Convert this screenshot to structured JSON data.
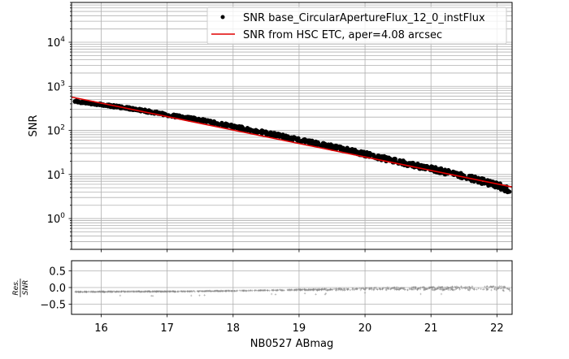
{
  "chart_data": [
    {
      "type": "scatter",
      "panel": "main",
      "title": "",
      "xlabel": "",
      "ylabel": "SNR",
      "yscale": "log",
      "xlim": [
        15.55,
        22.23
      ],
      "ylim": [
        0.2,
        80000
      ],
      "grid": true,
      "legend_position": "upper right",
      "x_ticks": [
        16,
        17,
        18,
        19,
        20,
        21,
        22
      ],
      "y_ticks": [
        "10^0",
        "10^1",
        "10^2",
        "10^3",
        "10^4"
      ],
      "y_tick_labels": [
        "10",
        "10",
        "10",
        "10",
        "10"
      ],
      "y_tick_exps": [
        "0",
        "1",
        "2",
        "3",
        "4"
      ],
      "series": [
        {
          "name": "SNR base_CircularApertureFlux_12_0_instFlux",
          "style": "black dots",
          "color": "#000000",
          "x": [
            15.6,
            16.0,
            16.5,
            17.0,
            17.5,
            18.0,
            18.5,
            19.0,
            19.5,
            20.0,
            20.5,
            21.0,
            21.5,
            22.0,
            22.2
          ],
          "y": [
            460,
            390,
            310,
            230,
            175,
            125,
            90,
            62,
            44,
            30,
            20,
            14,
            9.5,
            6,
            4.5
          ]
        },
        {
          "name": "SNR from HSC ETC, aper=4.08 arcsec",
          "style": "red line",
          "color": "#e00000",
          "x": [
            15.55,
            22.23
          ],
          "y": [
            570,
            5.2
          ]
        }
      ]
    },
    {
      "type": "scatter",
      "panel": "residual",
      "xlabel": "NB0527 ABmag",
      "ylabel": "Res./SNR",
      "ylabel_num": "Res.",
      "ylabel_den": "SNR",
      "xlim": [
        15.55,
        22.23
      ],
      "ylim": [
        -0.8,
        0.8
      ],
      "grid": true,
      "x_ticks": [
        16,
        17,
        18,
        19,
        20,
        21,
        22
      ],
      "y_ticks": [
        0.5,
        0.0,
        -0.5
      ],
      "y_tick_labels": [
        "0.5",
        "0.0",
        "−0.5"
      ],
      "series": [
        {
          "name": "residual",
          "style": "grey plus markers",
          "color": "#888888",
          "x": [
            15.6,
            16.5,
            17.0,
            18.0,
            19.0,
            19.5,
            20.0,
            20.5,
            21.0,
            21.5,
            22.0,
            22.2
          ],
          "y": [
            -0.13,
            -0.12,
            -0.12,
            -0.1,
            -0.07,
            -0.06,
            -0.04,
            -0.03,
            -0.03,
            -0.02,
            -0.02,
            -0.05
          ]
        }
      ]
    }
  ],
  "labels": {
    "x_ticks": [
      "16",
      "17",
      "18",
      "19",
      "20",
      "21",
      "22"
    ],
    "legend_dots": "SNR base_CircularApertureFlux_12_0_instFlux",
    "legend_line": "SNR from HSC ETC, aper=4.08 arcsec",
    "ylabel_main": "SNR",
    "xlabel": "NB0527 ABmag",
    "res_num": "Res.",
    "res_den": "SNR",
    "res_ticks": [
      "0.5",
      "0.0",
      "−0.5"
    ]
  }
}
